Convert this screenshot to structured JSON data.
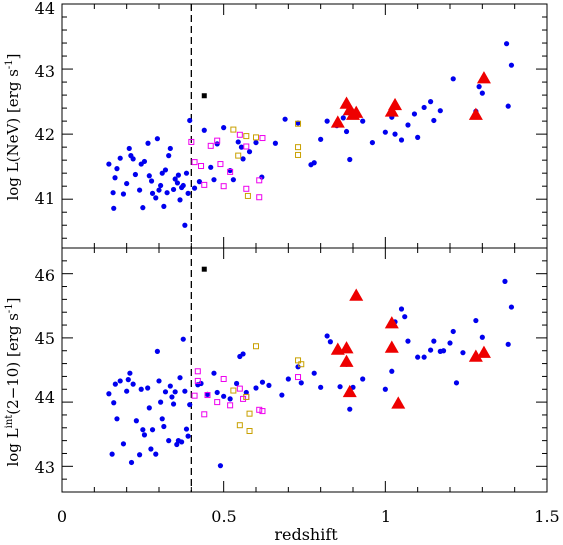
{
  "chart_data": [
    {
      "type": "scatter",
      "panel": "top",
      "xlabel": "",
      "ylabel": "log L(NeV) [erg s",
      "ylabel_sup": "-1",
      "ylabel_tail": "]",
      "xlim": [
        0,
        1.5
      ],
      "ylim": [
        40.25,
        44.0
      ],
      "y_ticks": [
        41,
        42,
        43,
        44
      ],
      "y_tick_labels": [
        "41",
        "42",
        "43",
        "44"
      ],
      "x_ticks": [
        0,
        0.5,
        1,
        1.5
      ],
      "vline_x": 0.4,
      "colors": {
        "blue": "#0000ee",
        "red": "#ee0000",
        "magenta": "#ee00ee",
        "orange": "#c8a000",
        "black": "#000000"
      },
      "series": [
        {
          "marker": "circle",
          "color": "blue",
          "points": [
            [
              0.145,
              41.54
            ],
            [
              0.158,
              41.1
            ],
            [
              0.16,
              40.86
            ],
            [
              0.164,
              41.33
            ],
            [
              0.17,
              41.47
            ],
            [
              0.18,
              41.63
            ],
            [
              0.19,
              41.08
            ],
            [
              0.2,
              41.24
            ],
            [
              0.208,
              41.78
            ],
            [
              0.213,
              41.67
            ],
            [
              0.22,
              41.62
            ],
            [
              0.227,
              41.38
            ],
            [
              0.24,
              41.14
            ],
            [
              0.245,
              41.54
            ],
            [
              0.25,
              40.87
            ],
            [
              0.255,
              41.58
            ],
            [
              0.266,
              41.86
            ],
            [
              0.27,
              41.36
            ],
            [
              0.277,
              41.28
            ],
            [
              0.28,
              41.09
            ],
            [
              0.29,
              41.02
            ],
            [
              0.295,
              41.93
            ],
            [
              0.3,
              41.14
            ],
            [
              0.305,
              41.21
            ],
            [
              0.31,
              41.4
            ],
            [
              0.315,
              40.89
            ],
            [
              0.32,
              41.45
            ],
            [
              0.325,
              41.1
            ],
            [
              0.33,
              41.67
            ],
            [
              0.335,
              41.78
            ],
            [
              0.345,
              41.15
            ],
            [
              0.35,
              41.31
            ],
            [
              0.357,
              41.25
            ],
            [
              0.36,
              41.37
            ],
            [
              0.365,
              40.99
            ],
            [
              0.37,
              41.18
            ],
            [
              0.375,
              41.21
            ],
            [
              0.38,
              40.6
            ],
            [
              0.385,
              41.4
            ],
            [
              0.39,
              41.09
            ],
            [
              0.395,
              42.21
            ],
            [
              0.41,
              41.17
            ],
            [
              0.425,
              41.27
            ],
            [
              0.44,
              42.06
            ],
            [
              0.46,
              41.49
            ],
            [
              0.47,
              41.3
            ],
            [
              0.48,
              41.85
            ],
            [
              0.5,
              42.1
            ],
            [
              0.52,
              41.44
            ],
            [
              0.53,
              41.3
            ],
            [
              0.545,
              41.88
            ],
            [
              0.555,
              41.8
            ],
            [
              0.56,
              41.62
            ],
            [
              0.58,
              41.73
            ],
            [
              0.6,
              41.87
            ],
            [
              0.618,
              41.34
            ],
            [
              0.66,
              41.86
            ],
            [
              0.69,
              42.23
            ],
            [
              0.73,
              42.17
            ],
            [
              0.77,
              41.53
            ],
            [
              0.78,
              41.56
            ],
            [
              0.8,
              41.92
            ],
            [
              0.82,
              42.2
            ],
            [
              0.85,
              42.13
            ],
            [
              0.87,
              42.25
            ],
            [
              0.88,
              42.04
            ],
            [
              0.89,
              42.41
            ],
            [
              0.89,
              41.61
            ],
            [
              0.93,
              42.2
            ],
            [
              0.96,
              41.87
            ],
            [
              1.0,
              42.03
            ],
            [
              1.02,
              42.26
            ],
            [
              1.03,
              42.0
            ],
            [
              1.05,
              41.91
            ],
            [
              1.07,
              42.14
            ],
            [
              1.09,
              42.31
            ],
            [
              1.1,
              41.95
            ],
            [
              1.12,
              42.41
            ],
            [
              1.14,
              42.5
            ],
            [
              1.15,
              42.21
            ],
            [
              1.17,
              42.36
            ],
            [
              1.21,
              42.85
            ],
            [
              1.28,
              42.35
            ],
            [
              1.29,
              42.73
            ],
            [
              1.3,
              42.63
            ],
            [
              1.375,
              43.39
            ],
            [
              1.39,
              43.06
            ],
            [
              1.38,
              42.43
            ]
          ]
        },
        {
          "marker": "triangle",
          "color": "red",
          "points": [
            [
              0.853,
              42.18
            ],
            [
              0.88,
              42.47
            ],
            [
              0.89,
              42.37
            ],
            [
              0.9,
              42.3
            ],
            [
              0.91,
              42.33
            ],
            [
              1.02,
              42.35
            ],
            [
              1.03,
              42.45
            ],
            [
              1.28,
              42.3
            ],
            [
              1.305,
              42.86
            ]
          ]
        },
        {
          "marker": "square",
          "color": "magenta",
          "points": [
            [
              0.4,
              41.88
            ],
            [
              0.41,
              41.57
            ],
            [
              0.43,
              41.51
            ],
            [
              0.44,
              41.22
            ],
            [
              0.46,
              41.82
            ],
            [
              0.48,
              41.9
            ],
            [
              0.49,
              41.54
            ],
            [
              0.5,
              41.2
            ],
            [
              0.52,
              41.42
            ],
            [
              0.55,
              41.99
            ],
            [
              0.57,
              41.81
            ],
            [
              0.57,
              41.16
            ],
            [
              0.61,
              41.29
            ],
            [
              0.61,
              41.03
            ],
            [
              0.62,
              41.94
            ]
          ]
        },
        {
          "marker": "square",
          "color": "orange",
          "points": [
            [
              0.53,
              42.07
            ],
            [
              0.545,
              41.67
            ],
            [
              0.57,
              41.97
            ],
            [
              0.575,
              41.05
            ],
            [
              0.6,
              41.95
            ],
            [
              0.73,
              41.8
            ],
            [
              0.73,
              41.68
            ],
            [
              0.73,
              42.16
            ]
          ]
        },
        {
          "marker": "square-filled",
          "color": "black",
          "points": [
            [
              0.44,
              42.59
            ]
          ]
        }
      ]
    },
    {
      "type": "scatter",
      "panel": "bottom",
      "xlabel": "redshift",
      "ylabel": "log L",
      "ylabel_sup": "int",
      "ylabel_tail": "(2−10) [erg s",
      "ylabel_sup2": "-1",
      "ylabel_end": "]",
      "xlim": [
        0,
        1.5
      ],
      "x_ticks": [
        0,
        0.5,
        1,
        1.5
      ],
      "x_tick_labels": [
        "0",
        "0.5",
        "1",
        "1.5"
      ],
      "ylim": [
        42.6,
        46.4
      ],
      "y_ticks": [
        43,
        44,
        45,
        46
      ],
      "y_tick_labels": [
        "43",
        "44",
        "45",
        "46"
      ],
      "vline_x": 0.4,
      "series": [
        {
          "marker": "circle",
          "color": "blue",
          "points": [
            [
              0.145,
              44.13
            ],
            [
              0.155,
              43.19
            ],
            [
              0.16,
              43.99
            ],
            [
              0.165,
              44.28
            ],
            [
              0.17,
              43.74
            ],
            [
              0.18,
              44.33
            ],
            [
              0.19,
              43.35
            ],
            [
              0.2,
              44.17
            ],
            [
              0.205,
              44.35
            ],
            [
              0.21,
              44.45
            ],
            [
              0.215,
              43.06
            ],
            [
              0.22,
              44.28
            ],
            [
              0.23,
              43.71
            ],
            [
              0.24,
              43.18
            ],
            [
              0.245,
              44.2
            ],
            [
              0.25,
              43.57
            ],
            [
              0.255,
              43.49
            ],
            [
              0.265,
              44.22
            ],
            [
              0.27,
              43.91
            ],
            [
              0.275,
              43.27
            ],
            [
              0.28,
              43.57
            ],
            [
              0.29,
              43.19
            ],
            [
              0.295,
              44.79
            ],
            [
              0.3,
              44.33
            ],
            [
              0.305,
              44.0
            ],
            [
              0.31,
              43.74
            ],
            [
              0.315,
              43.62
            ],
            [
              0.32,
              44.16
            ],
            [
              0.33,
              43.4
            ],
            [
              0.335,
              44.25
            ],
            [
              0.34,
              44.08
            ],
            [
              0.345,
              43.97
            ],
            [
              0.35,
              44.16
            ],
            [
              0.355,
              43.34
            ],
            [
              0.36,
              43.4
            ],
            [
              0.365,
              44.38
            ],
            [
              0.37,
              43.38
            ],
            [
              0.375,
              44.98
            ],
            [
              0.38,
              44.17
            ],
            [
              0.385,
              43.58
            ],
            [
              0.39,
              43.47
            ],
            [
              0.395,
              43.96
            ],
            [
              0.42,
              44.27
            ],
            [
              0.43,
              44.29
            ],
            [
              0.45,
              44.12
            ],
            [
              0.47,
              44.45
            ],
            [
              0.48,
              44.15
            ],
            [
              0.49,
              43.01
            ],
            [
              0.5,
              44.09
            ],
            [
              0.52,
              44.05
            ],
            [
              0.54,
              44.29
            ],
            [
              0.55,
              44.71
            ],
            [
              0.56,
              44.75
            ],
            [
              0.57,
              44.15
            ],
            [
              0.6,
              44.22
            ],
            [
              0.62,
              44.31
            ],
            [
              0.64,
              44.26
            ],
            [
              0.68,
              44.11
            ],
            [
              0.7,
              44.36
            ],
            [
              0.73,
              44.55
            ],
            [
              0.74,
              44.3
            ],
            [
              0.78,
              44.45
            ],
            [
              0.8,
              44.23
            ],
            [
              0.82,
              45.03
            ],
            [
              0.83,
              44.94
            ],
            [
              0.86,
              44.24
            ],
            [
              0.88,
              44.59
            ],
            [
              0.89,
              43.89
            ],
            [
              0.9,
              44.23
            ],
            [
              0.93,
              44.36
            ],
            [
              1.0,
              44.2
            ],
            [
              1.02,
              44.48
            ],
            [
              1.03,
              45.25
            ],
            [
              1.05,
              45.45
            ],
            [
              1.06,
              45.33
            ],
            [
              1.07,
              44.95
            ],
            [
              1.1,
              44.7
            ],
            [
              1.12,
              44.7
            ],
            [
              1.14,
              44.81
            ],
            [
              1.15,
              44.95
            ],
            [
              1.17,
              44.79
            ],
            [
              1.18,
              44.8
            ],
            [
              1.2,
              44.92
            ],
            [
              1.21,
              45.1
            ],
            [
              1.22,
              44.3
            ],
            [
              1.24,
              44.77
            ],
            [
              1.28,
              45.27
            ],
            [
              1.3,
              45.01
            ],
            [
              1.37,
              45.88
            ],
            [
              1.39,
              45.48
            ],
            [
              1.38,
              44.9
            ]
          ]
        },
        {
          "marker": "triangle",
          "color": "red",
          "points": [
            [
              0.853,
              44.82
            ],
            [
              0.88,
              44.84
            ],
            [
              0.88,
              44.63
            ],
            [
              0.89,
              44.16
            ],
            [
              0.91,
              45.66
            ],
            [
              1.02,
              44.85
            ],
            [
              1.02,
              45.23
            ],
            [
              1.04,
              43.98
            ],
            [
              1.28,
              44.71
            ],
            [
              1.305,
              44.77
            ]
          ]
        },
        {
          "marker": "square",
          "color": "magenta",
          "points": [
            [
              0.41,
              44.1
            ],
            [
              0.42,
              44.48
            ],
            [
              0.42,
              44.33
            ],
            [
              0.44,
              43.81
            ],
            [
              0.45,
              44.11
            ],
            [
              0.48,
              44.0
            ],
            [
              0.5,
              44.36
            ],
            [
              0.52,
              43.95
            ],
            [
              0.55,
              44.21
            ],
            [
              0.56,
              44.05
            ],
            [
              0.57,
              44.08
            ],
            [
              0.61,
              43.88
            ],
            [
              0.62,
              43.86
            ],
            [
              0.73,
              44.39
            ]
          ]
        },
        {
          "marker": "square",
          "color": "orange",
          "points": [
            [
              0.53,
              44.18
            ],
            [
              0.55,
              43.64
            ],
            [
              0.58,
              43.82
            ],
            [
              0.57,
              44.08
            ],
            [
              0.6,
              44.87
            ],
            [
              0.73,
              44.65
            ],
            [
              0.74,
              44.59
            ],
            [
              0.58,
              43.55
            ]
          ]
        },
        {
          "marker": "square-filled",
          "color": "black",
          "points": [
            [
              0.44,
              46.07
            ]
          ]
        }
      ]
    }
  ]
}
